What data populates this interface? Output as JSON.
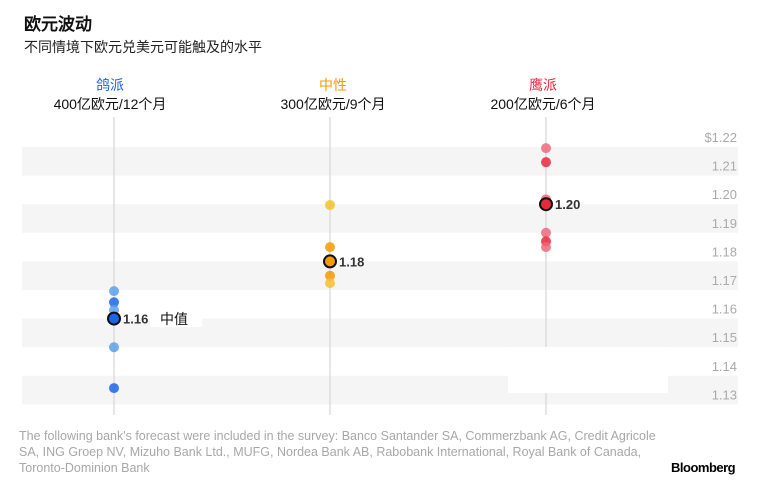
{
  "title": "欧元波动",
  "subtitle": "不同情境下欧元兑美元可能触及的水平",
  "chart_data": {
    "type": "scatter",
    "title": "欧元波动",
    "subtitle": "不同情境下欧元兑美元可能触及的水平",
    "ylim": [
      1.13,
      1.22
    ],
    "yticks": [
      "$1.22",
      "1.21",
      "1.20",
      "1.19",
      "1.18",
      "1.17",
      "1.16",
      "1.15",
      "1.14",
      "1.13"
    ],
    "ytick_values": [
      1.22,
      1.21,
      1.2,
      1.19,
      1.18,
      1.17,
      1.16,
      1.15,
      1.14,
      1.13
    ],
    "grid": "alternating bands",
    "categories": [
      {
        "name": "鸽派",
        "scenario": "400亿欧元/12个月",
        "color": "#1a66e6",
        "light": "#5aa0ec",
        "median": 1.16,
        "median_label": "1.16",
        "values": [
          1.1696,
          1.1657,
          1.163,
          1.16,
          1.15,
          1.1357
        ]
      },
      {
        "name": "中性",
        "scenario": "300亿欧元/9个月",
        "color": "#f59a00",
        "light": "#f5c030",
        "median": 1.18,
        "median_label": "1.18",
        "values": [
          1.1997,
          1.185,
          1.18,
          1.175,
          1.1724
        ]
      },
      {
        "name": "鹰派",
        "scenario": "200亿欧元/6个月",
        "color": "#e8283c",
        "light": "#ec6a7c",
        "median": 1.2,
        "median_label": "1.20",
        "values": [
          1.2196,
          1.2147,
          1.2017,
          1.2,
          1.19,
          1.187,
          1.185
        ]
      }
    ],
    "annotation": "中值"
  },
  "footnote": "The following bank's forecast were included in the survey: Banco Santander SA, Commerzbank AG, Credit Agricole SA, ING Groep NV, Mizuho Bank Ltd., MUFG, Nordea Bank AB, Rabobank International, Royal Bank of Canada, Toronto-Dominion Bank",
  "source": "Bloomberg"
}
